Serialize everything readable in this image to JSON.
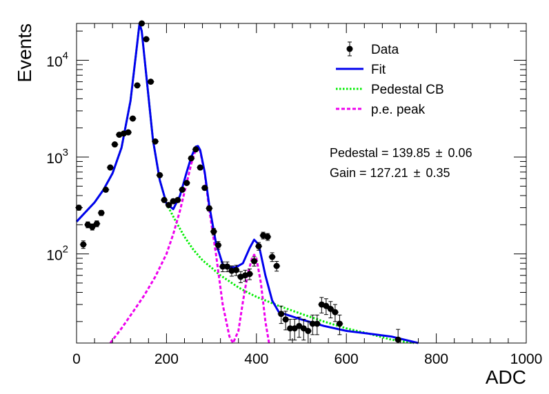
{
  "chart_data": {
    "type": "scatter",
    "title": "",
    "xlabel": "ADC",
    "ylabel": "Events",
    "xlim": [
      0,
      1000
    ],
    "ylim": [
      12,
      24000
    ],
    "yscale": "log",
    "x_ticks": [
      0,
      200,
      400,
      600,
      800,
      1000
    ],
    "x_tick_labels": [
      "0",
      "200",
      "400",
      "600",
      "800",
      "1000"
    ],
    "y_ticks": [
      {
        "value": 10000,
        "base": "10",
        "exp": "4"
      },
      {
        "value": 1000,
        "base": "10",
        "exp": "3"
      },
      {
        "value": 100,
        "base": "10",
        "exp": "2"
      }
    ],
    "grid": false,
    "legend_position": "top-right",
    "legend": [
      {
        "label": "Data",
        "style": "marker",
        "color": "#000000"
      },
      {
        "label": "Fit",
        "style": "solid",
        "color": "#0000ee"
      },
      {
        "label": "Pedestal CB",
        "style": "dotted",
        "color": "#00ee00"
      },
      {
        "label": "p.e. peak",
        "style": "dashed",
        "color": "#ee00ee"
      }
    ],
    "annotations": [
      {
        "text": "Pedestal = 139.85",
        "pm": "±",
        "err": "0.06"
      },
      {
        "text": "Gain = 127.21",
        "pm": "±",
        "err": "0.35"
      }
    ],
    "series": [
      {
        "name": "Data",
        "style": "points",
        "color": "#000000",
        "x": [
          5,
          15,
          25,
          35,
          45,
          55,
          65,
          75,
          85,
          95,
          105,
          115,
          125,
          135,
          145,
          155,
          165,
          175,
          185,
          195,
          205,
          215,
          225,
          235,
          245,
          255,
          265,
          275,
          285,
          295,
          305,
          315,
          325,
          335,
          345,
          355,
          365,
          375,
          385,
          395,
          405,
          415,
          425,
          435,
          445,
          455,
          465,
          475,
          485,
          495,
          505,
          515,
          525,
          535,
          545,
          555,
          565,
          575,
          585,
          715
        ],
        "y": [
          300,
          125,
          200,
          190,
          205,
          265,
          460,
          780,
          1350,
          1700,
          1750,
          1800,
          2500,
          5500,
          24000,
          16500,
          6000,
          1450,
          650,
          360,
          320,
          350,
          360,
          460,
          540,
          970,
          1200,
          780,
          480,
          295,
          170,
          123,
          74,
          74,
          67,
          68,
          58,
          60,
          62,
          84,
          120,
          155,
          150,
          93,
          75,
          24,
          21,
          17,
          17,
          18,
          17,
          16,
          19,
          19,
          30,
          29,
          27,
          25,
          19,
          13
        ]
      },
      {
        "name": "Fit",
        "style": "solid",
        "color": "#0000ee",
        "x": [
          0,
          20,
          40,
          60,
          80,
          100,
          120,
          135,
          140,
          145,
          155,
          170,
          185,
          200,
          215,
          230,
          245,
          255,
          265,
          270,
          275,
          285,
          295,
          310,
          325,
          340,
          355,
          370,
          385,
          395,
          405,
          420,
          435,
          450,
          500,
          550,
          600,
          650,
          700,
          760
        ],
        "y": [
          215,
          270,
          340,
          460,
          680,
          1250,
          3800,
          15000,
          24000,
          20000,
          7000,
          1500,
          580,
          330,
          290,
          400,
          700,
          1000,
          1280,
          1300,
          1180,
          700,
          320,
          130,
          78,
          72,
          73,
          80,
          115,
          140,
          125,
          60,
          33,
          25,
          21,
          18,
          16,
          15,
          14,
          12
        ]
      },
      {
        "name": "Pedestal CB",
        "style": "dotted",
        "color": "#00ee00",
        "x": [
          0,
          20,
          40,
          60,
          80,
          100,
          120,
          135,
          140,
          145,
          155,
          170,
          185,
          200,
          220,
          240,
          260,
          280,
          300,
          320,
          340,
          360,
          380,
          400,
          420,
          450,
          500,
          550,
          600,
          650,
          700,
          750
        ],
        "y": [
          215,
          270,
          340,
          460,
          680,
          1250,
          3800,
          15000,
          24000,
          20000,
          7000,
          1500,
          580,
          330,
          220,
          150,
          110,
          86,
          72,
          60,
          52,
          45,
          40,
          36,
          33,
          29,
          24,
          20,
          17,
          15,
          13,
          12
        ]
      },
      {
        "name": "p.e. peak",
        "style": "dashed",
        "color": "#ee00ee",
        "x": [
          75,
          100,
          125,
          150,
          175,
          200,
          215,
          230,
          245,
          255,
          265,
          270,
          275,
          285,
          295,
          310,
          325,
          340,
          348,
          360,
          370,
          380,
          390,
          395,
          400,
          410,
          420,
          428
        ],
        "y": [
          12,
          17,
          25,
          37,
          58,
          100,
          160,
          280,
          540,
          850,
          1200,
          1270,
          1150,
          680,
          290,
          100,
          30,
          14,
          12,
          16,
          32,
          60,
          90,
          98,
          90,
          50,
          20,
          12
        ]
      }
    ]
  }
}
